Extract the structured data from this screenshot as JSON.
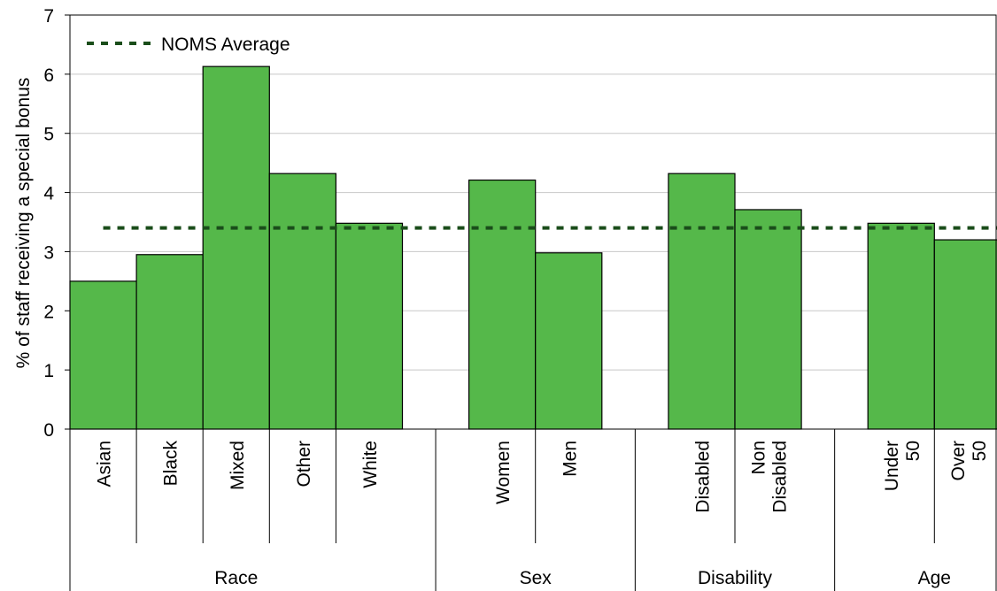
{
  "chart_data": {
    "type": "bar",
    "ylabel": "% of staff receiving a special bonus",
    "xlabel": "",
    "ylim": [
      0,
      7
    ],
    "yticks": [
      "0",
      "1",
      "2",
      "3",
      "4",
      "5",
      "6",
      "7"
    ],
    "grid": true,
    "bar_color": "#55b84a",
    "reference_line_color": "#1a4d1a",
    "legend": {
      "placement": "top-left",
      "entries": [
        "NOMS Average"
      ]
    },
    "reference_line": {
      "name": "NOMS Average",
      "value": 3.4
    },
    "groups": [
      {
        "name": "Race",
        "categories": [
          "Asian",
          "Black",
          "Mixed",
          "Other",
          "White"
        ],
        "values": [
          2.5,
          2.95,
          6.13,
          4.32,
          3.48
        ]
      },
      {
        "name": "Sex",
        "categories": [
          "Women",
          "Men"
        ],
        "values": [
          4.21,
          2.98
        ]
      },
      {
        "name": "Disability",
        "categories": [
          "Disabled",
          "Non Disabled"
        ],
        "values": [
          4.32,
          3.71
        ]
      },
      {
        "name": "Age",
        "categories": [
          "Under 50",
          "Over 50"
        ],
        "values": [
          3.48,
          3.2
        ]
      }
    ]
  }
}
